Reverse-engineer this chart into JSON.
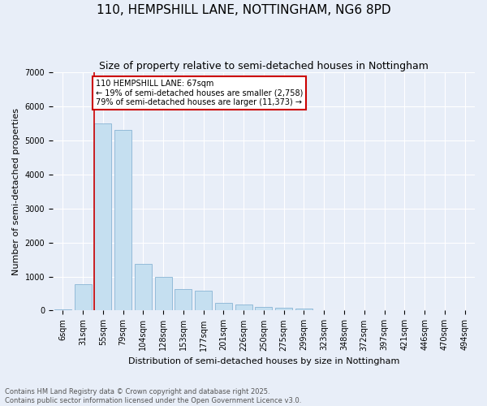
{
  "title": "110, HEMPSHILL LANE, NOTTINGHAM, NG6 8PD",
  "subtitle": "Size of property relative to semi-detached houses in Nottingham",
  "xlabel": "Distribution of semi-detached houses by size in Nottingham",
  "ylabel": "Number of semi-detached properties",
  "categories": [
    "6sqm",
    "31sqm",
    "55sqm",
    "79sqm",
    "104sqm",
    "128sqm",
    "153sqm",
    "177sqm",
    "201sqm",
    "226sqm",
    "250sqm",
    "275sqm",
    "299sqm",
    "323sqm",
    "348sqm",
    "372sqm",
    "397sqm",
    "421sqm",
    "446sqm",
    "470sqm",
    "494sqm"
  ],
  "values": [
    30,
    780,
    5500,
    5300,
    1380,
    1000,
    620,
    580,
    230,
    180,
    110,
    90,
    50,
    10,
    0,
    0,
    0,
    0,
    0,
    0,
    0
  ],
  "bar_color": "#c5dff0",
  "bar_edge_color": "#89b4d4",
  "property_line_index": 2,
  "property_line_color": "#cc0000",
  "annotation_text": "110 HEMPSHILL LANE: 67sqm\n← 19% of semi-detached houses are smaller (2,758)\n79% of semi-detached houses are larger (11,373) →",
  "annotation_box_facecolor": "white",
  "annotation_box_edgecolor": "#cc0000",
  "ylim": [
    0,
    7000
  ],
  "yticks": [
    0,
    1000,
    2000,
    3000,
    4000,
    5000,
    6000,
    7000
  ],
  "background_color": "#e8eef8",
  "grid_color": "#ffffff",
  "footer_line1": "Contains HM Land Registry data © Crown copyright and database right 2025.",
  "footer_line2": "Contains public sector information licensed under the Open Government Licence v3.0.",
  "title_fontsize": 11,
  "subtitle_fontsize": 9,
  "annotation_fontsize": 7,
  "tick_fontsize": 7,
  "ylabel_fontsize": 8,
  "xlabel_fontsize": 8
}
